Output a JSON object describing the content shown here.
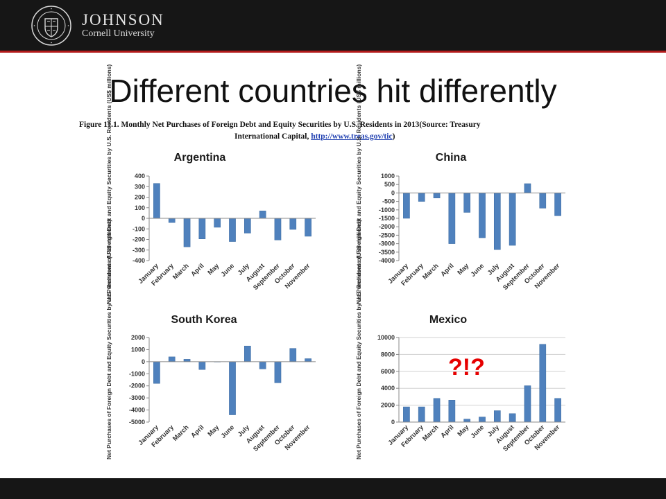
{
  "header": {
    "logo_word": "JOHNSON",
    "logo_sub": "Cornell University",
    "seal_text": "CORNELL UNIVERSITY FOUNDED A.D. 1865"
  },
  "slide": {
    "title": "Different countries hit differently"
  },
  "figure": {
    "caption_line1": "Figure 11.1. Monthly Net Purchases of Foreign Debt and Equity Securities by U.S. Residents in 2013(Source: Treasury",
    "caption_line2_prefix": "International Capital, ",
    "caption_link": "http://www.treas.gov/tic",
    "caption_line2_suffix": ")"
  },
  "annotation": "?!?",
  "colors": {
    "bar": "#4f81bd",
    "bar_edge": "#3b6aa0",
    "header_bg": "#161616",
    "accent_red": "#b31b1b",
    "annotation": "#e60000"
  },
  "chart_data": [
    {
      "type": "bar",
      "title": "Argentina",
      "ylabel": "Net Purchases of Foreign Debt and Equity Securities by U.S. Residents (US$ millions)",
      "categories": [
        "January",
        "February",
        "March",
        "April",
        "May",
        "June",
        "July",
        "August",
        "September",
        "October",
        "November"
      ],
      "values": [
        330,
        -40,
        -270,
        -195,
        -85,
        -220,
        -140,
        70,
        -205,
        -105,
        -170
      ],
      "yticks": [
        400,
        300,
        200,
        100,
        0,
        -100,
        -200,
        -300,
        -400
      ],
      "ylim": [
        -400,
        400
      ],
      "grid": false
    },
    {
      "type": "bar",
      "title": "China",
      "ylabel": "Net Purchases of Foreign Debt and Equity Securities by U.S. Residents (US$ millions)",
      "categories": [
        "January",
        "February",
        "March",
        "April",
        "May",
        "June",
        "July",
        "August",
        "September",
        "October",
        "November"
      ],
      "values": [
        -1500,
        -500,
        -300,
        -3000,
        -1150,
        -2650,
        -3350,
        -3100,
        550,
        -900,
        -1350
      ],
      "yticks": [
        1000,
        500,
        0,
        -500,
        -1000,
        -1500,
        -2000,
        -2500,
        -3000,
        -3500,
        -4000
      ],
      "ylim": [
        -4000,
        1000
      ],
      "grid": false
    },
    {
      "type": "bar",
      "title": "South Korea",
      "ylabel": "Net Purchases of Foreign Debt and Equity Securities by U.S. Residents (US$ millions)",
      "categories": [
        "January",
        "February",
        "March",
        "April",
        "May",
        "June",
        "July",
        "August",
        "September",
        "October",
        "November"
      ],
      "values": [
        -1800,
        400,
        200,
        -650,
        0,
        -4400,
        1300,
        -600,
        -1750,
        1100,
        250
      ],
      "yticks": [
        2000,
        1000,
        0,
        -1000,
        -2000,
        -3000,
        -4000,
        -5000
      ],
      "ylim": [
        -5000,
        2000
      ],
      "grid": false
    },
    {
      "type": "bar",
      "title": "Mexico",
      "ylabel": "Net Purchases of Foreign Debt and Equity Securities by U.S. Residents (US$ millions)",
      "categories": [
        "January",
        "February",
        "March",
        "April",
        "May",
        "June",
        "July",
        "August",
        "September",
        "October",
        "November"
      ],
      "values": [
        1800,
        1800,
        2800,
        2600,
        350,
        600,
        1350,
        1000,
        4300,
        9200,
        2800
      ],
      "yticks": [
        10000,
        8000,
        6000,
        4000,
        2000,
        0
      ],
      "ylim": [
        0,
        10000
      ],
      "grid": true
    }
  ]
}
